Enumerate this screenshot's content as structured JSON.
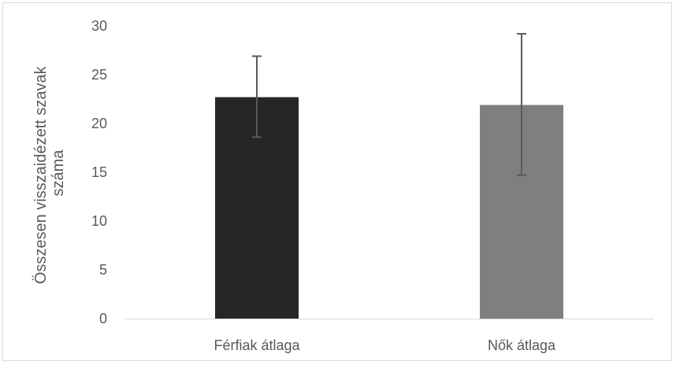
{
  "chart_data": {
    "type": "bar",
    "categories": [
      "Férfiak átlaga",
      "Nők átlaga"
    ],
    "values": [
      22.7,
      21.9
    ],
    "error_bars": [
      {
        "low": 18.6,
        "high": 26.9
      },
      {
        "low": 14.7,
        "high": 29.2
      }
    ],
    "bar_colors": [
      "#262626",
      "#7f7f7f"
    ],
    "ylabel_lines": [
      "Összesen visszaidézett szavak",
      "száma"
    ],
    "xlabel": "",
    "ylim": [
      0,
      30
    ],
    "yticks": [
      "0",
      "5",
      "10",
      "15",
      "20",
      "25",
      "30"
    ],
    "grid": false,
    "legend": "none"
  }
}
